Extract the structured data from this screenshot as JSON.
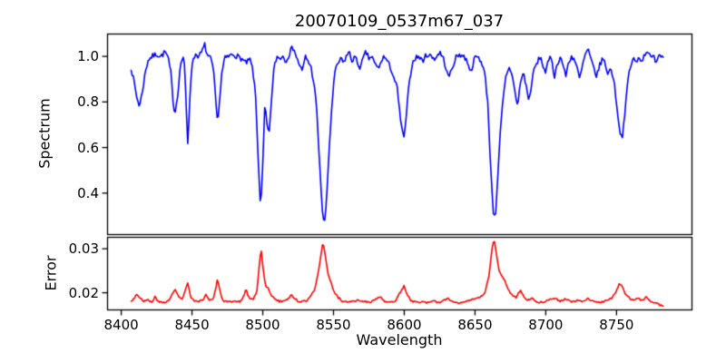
{
  "figure": {
    "title": "20070109_0537m67_037",
    "background": "#ffffff",
    "text_color": "#000000",
    "spine_color": "#000000"
  },
  "x_axis": {
    "label": "Wavelength",
    "ticks": [
      8400,
      8450,
      8500,
      8550,
      8600,
      8650,
      8700,
      8750
    ],
    "tick_labels": [
      "8400",
      "8450",
      "8500",
      "8550",
      "8600",
      "8650",
      "8700",
      "8750"
    ]
  },
  "chart_data": [
    {
      "type": "line",
      "panel": "spectrum",
      "ylabel": "Spectrum",
      "line_color": "#0000ff",
      "xlim": [
        8390,
        8803
      ],
      "ylim": [
        0.22,
        1.1
      ],
      "yticks": [
        0.4,
        0.6,
        0.8,
        1.0
      ],
      "ytick_labels": [
        "0.4",
        "0.6",
        "0.8",
        "1.0"
      ],
      "grid": false,
      "noise": {
        "amplitude": 0.012,
        "seed": 7,
        "step": 0.8
      },
      "absorption_lines": [
        8413,
        8438,
        8447,
        8468,
        8498.5,
        8543.5,
        8600,
        8664.5,
        8754
      ],
      "points": [
        [
          8407,
          0.95
        ],
        [
          8409,
          0.89
        ],
        [
          8411,
          0.82
        ],
        [
          8413,
          0.78
        ],
        [
          8415,
          0.85
        ],
        [
          8417,
          0.93
        ],
        [
          8419,
          0.985
        ],
        [
          8422,
          1.0
        ],
        [
          8425,
          1.01
        ],
        [
          8428,
          1.0
        ],
        [
          8431,
          1.02
        ],
        [
          8433,
          0.995
        ],
        [
          8435,
          0.93
        ],
        [
          8437,
          0.78
        ],
        [
          8438,
          0.75
        ],
        [
          8440,
          0.84
        ],
        [
          8442,
          0.97
        ],
        [
          8444,
          1.0
        ],
        [
          8445,
          0.93
        ],
        [
          8446,
          0.76
        ],
        [
          8447,
          0.62
        ],
        [
          8448,
          0.74
        ],
        [
          8449,
          0.9
        ],
        [
          8451,
          0.995
        ],
        [
          8453,
          1.01
        ],
        [
          8455,
          1.0
        ],
        [
          8457,
          1.02
        ],
        [
          8459,
          1.05
        ],
        [
          8461,
          1.0
        ],
        [
          8463,
          0.99
        ],
        [
          8465,
          0.95
        ],
        [
          8467,
          0.79
        ],
        [
          8468,
          0.71
        ],
        [
          8469,
          0.77
        ],
        [
          8471,
          0.92
        ],
        [
          8473,
          0.99
        ],
        [
          8476,
          1.0
        ],
        [
          8479,
          1.01
        ],
        [
          8482,
          1.0
        ],
        [
          8485,
          0.99
        ],
        [
          8488,
          0.97
        ],
        [
          8491,
          0.985
        ],
        [
          8493,
          0.94
        ],
        [
          8495,
          0.82
        ],
        [
          8497,
          0.52
        ],
        [
          8498.5,
          0.33
        ],
        [
          8500,
          0.52
        ],
        [
          8501.5,
          0.79
        ],
        [
          8503,
          0.7
        ],
        [
          8504.5,
          0.655
        ],
        [
          8506,
          0.8
        ],
        [
          8508,
          0.95
        ],
        [
          8510,
          1.0
        ],
        [
          8512,
          0.99
        ],
        [
          8514,
          1.005
        ],
        [
          8516,
          0.98
        ],
        [
          8518,
          1.0
        ],
        [
          8520,
          1.03
        ],
        [
          8522,
          1.04
        ],
        [
          8524,
          0.99
        ],
        [
          8526,
          0.965
        ],
        [
          8528,
          0.93
        ],
        [
          8530,
          1.0
        ],
        [
          8532,
          0.98
        ],
        [
          8534,
          0.955
        ],
        [
          8536,
          0.89
        ],
        [
          8538,
          0.78
        ],
        [
          8540,
          0.55
        ],
        [
          8542,
          0.33
        ],
        [
          8543.5,
          0.26
        ],
        [
          8545,
          0.36
        ],
        [
          8547,
          0.6
        ],
        [
          8549,
          0.8
        ],
        [
          8551,
          0.93
        ],
        [
          8553,
          0.965
        ],
        [
          8555,
          0.99
        ],
        [
          8557,
          0.97
        ],
        [
          8559,
          1.0
        ],
        [
          8561,
          1.02
        ],
        [
          8563,
          0.98
        ],
        [
          8565,
          1.0
        ],
        [
          8567,
          0.97
        ],
        [
          8569,
          0.95
        ],
        [
          8571,
          0.99
        ],
        [
          8573,
          1.02
        ],
        [
          8575,
          0.99
        ],
        [
          8577,
          1.0
        ],
        [
          8579,
          0.97
        ],
        [
          8581,
          0.95
        ],
        [
          8583,
          0.96
        ],
        [
          8585,
          1.0
        ],
        [
          8587,
          0.99
        ],
        [
          8589,
          0.965
        ],
        [
          8591,
          0.94
        ],
        [
          8593,
          0.9
        ],
        [
          8595,
          0.86
        ],
        [
          8597,
          0.74
        ],
        [
          8599,
          0.66
        ],
        [
          8600,
          0.64
        ],
        [
          8601,
          0.71
        ],
        [
          8603,
          0.85
        ],
        [
          8605,
          0.95
        ],
        [
          8607,
          0.99
        ],
        [
          8610,
          1.0
        ],
        [
          8613,
          0.98
        ],
        [
          8616,
          1.01
        ],
        [
          8619,
          1.0
        ],
        [
          8622,
          0.99
        ],
        [
          8625,
          1.02
        ],
        [
          8628,
          0.985
        ],
        [
          8631,
          0.91
        ],
        [
          8633,
          0.93
        ],
        [
          8636,
          0.99
        ],
        [
          8639,
          1.01
        ],
        [
          8642,
          1.0
        ],
        [
          8645,
          0.975
        ],
        [
          8647,
          0.93
        ],
        [
          8649,
          0.98
        ],
        [
          8651,
          1.0
        ],
        [
          8653,
          0.99
        ],
        [
          8655,
          0.97
        ],
        [
          8657,
          0.92
        ],
        [
          8659,
          0.8
        ],
        [
          8661,
          0.52
        ],
        [
          8663,
          0.31
        ],
        [
          8664.5,
          0.3
        ],
        [
          8666,
          0.46
        ],
        [
          8668,
          0.68
        ],
        [
          8670,
          0.82
        ],
        [
          8672,
          0.92
        ],
        [
          8674,
          0.95
        ],
        [
          8676,
          0.93
        ],
        [
          8678,
          0.85
        ],
        [
          8680,
          0.78
        ],
        [
          8682,
          0.88
        ],
        [
          8684,
          0.93
        ],
        [
          8686,
          0.88
        ],
        [
          8688,
          0.8
        ],
        [
          8690,
          0.88
        ],
        [
          8692,
          0.95
        ],
        [
          8694,
          0.97
        ],
        [
          8696,
          1.0
        ],
        [
          8698,
          0.96
        ],
        [
          8700,
          0.93
        ],
        [
          8702,
          0.98
        ],
        [
          8704,
          1.0
        ],
        [
          8706,
          0.91
        ],
        [
          8708,
          0.96
        ],
        [
          8710,
          1.0
        ],
        [
          8712,
          0.97
        ],
        [
          8714,
          0.91
        ],
        [
          8716,
          0.97
        ],
        [
          8718,
          1.0
        ],
        [
          8720,
          0.99
        ],
        [
          8722,
          0.95
        ],
        [
          8724,
          0.9
        ],
        [
          8726,
          0.96
        ],
        [
          8728,
          1.01
        ],
        [
          8730,
          1.03
        ],
        [
          8732,
          0.98
        ],
        [
          8734,
          0.95
        ],
        [
          8736,
          0.91
        ],
        [
          8738,
          0.96
        ],
        [
          8740,
          0.99
        ],
        [
          8742,
          0.97
        ],
        [
          8744,
          0.92
        ],
        [
          8746,
          0.95
        ],
        [
          8748,
          0.9
        ],
        [
          8750,
          0.8
        ],
        [
          8752,
          0.68
        ],
        [
          8754,
          0.64
        ],
        [
          8756,
          0.75
        ],
        [
          8758,
          0.9
        ],
        [
          8760,
          0.96
        ],
        [
          8762,
          0.99
        ],
        [
          8764,
          0.97
        ],
        [
          8766,
          1.0
        ],
        [
          8768,
          0.98
        ],
        [
          8770,
          1.01
        ],
        [
          8772,
          1.03
        ],
        [
          8774,
          0.99
        ],
        [
          8776,
          1.0
        ],
        [
          8778,
          0.98
        ],
        [
          8780,
          1.01
        ],
        [
          8783,
          1.0
        ]
      ]
    },
    {
      "type": "line",
      "panel": "error",
      "ylabel": "Error",
      "line_color": "#ff0000",
      "xlim": [
        8390,
        8803
      ],
      "ylim": [
        0.0162,
        0.0327
      ],
      "yticks": [
        0.02,
        0.03
      ],
      "ytick_labels": [
        "0.02",
        "0.03"
      ],
      "grid": false,
      "noise": {
        "amplitude": 0.00022,
        "seed": 3,
        "step": 0.8
      },
      "points": [
        [
          8407,
          0.018
        ],
        [
          8409,
          0.0188
        ],
        [
          8411,
          0.0196
        ],
        [
          8413,
          0.019
        ],
        [
          8416,
          0.0181
        ],
        [
          8419,
          0.0183
        ],
        [
          8422,
          0.0178
        ],
        [
          8424,
          0.0192
        ],
        [
          8426,
          0.018
        ],
        [
          8429,
          0.0177
        ],
        [
          8432,
          0.0179
        ],
        [
          8435,
          0.019
        ],
        [
          8438,
          0.0207
        ],
        [
          8440,
          0.0195
        ],
        [
          8443,
          0.0184
        ],
        [
          8446,
          0.0213
        ],
        [
          8447,
          0.0222
        ],
        [
          8449,
          0.019
        ],
        [
          8452,
          0.018
        ],
        [
          8455,
          0.0179
        ],
        [
          8458,
          0.0186
        ],
        [
          8460,
          0.0196
        ],
        [
          8462,
          0.0184
        ],
        [
          8465,
          0.0185
        ],
        [
          8467,
          0.0213
        ],
        [
          8468,
          0.0232
        ],
        [
          8470,
          0.02
        ],
        [
          8472,
          0.0182
        ],
        [
          8475,
          0.0179
        ],
        [
          8478,
          0.0178
        ],
        [
          8481,
          0.018
        ],
        [
          8484,
          0.0179
        ],
        [
          8487,
          0.0195
        ],
        [
          8488,
          0.021
        ],
        [
          8490,
          0.019
        ],
        [
          8493,
          0.0184
        ],
        [
          8496,
          0.0205
        ],
        [
          8498,
          0.028
        ],
        [
          8499,
          0.0295
        ],
        [
          8500,
          0.0262
        ],
        [
          8502,
          0.0213
        ],
        [
          8504,
          0.021
        ],
        [
          8506,
          0.0195
        ],
        [
          8509,
          0.0184
        ],
        [
          8512,
          0.018
        ],
        [
          8515,
          0.0182
        ],
        [
          8518,
          0.0186
        ],
        [
          8520,
          0.0196
        ],
        [
          8522,
          0.0188
        ],
        [
          8525,
          0.0181
        ],
        [
          8528,
          0.018
        ],
        [
          8531,
          0.0182
        ],
        [
          8534,
          0.0195
        ],
        [
          8537,
          0.021
        ],
        [
          8540,
          0.026
        ],
        [
          8542.5,
          0.0316
        ],
        [
          8544,
          0.029
        ],
        [
          8546,
          0.0245
        ],
        [
          8548,
          0.0225
        ],
        [
          8550,
          0.0205
        ],
        [
          8553,
          0.019
        ],
        [
          8556,
          0.0182
        ],
        [
          8560,
          0.0178
        ],
        [
          8564,
          0.018
        ],
        [
          8568,
          0.0183
        ],
        [
          8572,
          0.018
        ],
        [
          8576,
          0.0178
        ],
        [
          8580,
          0.0185
        ],
        [
          8583,
          0.0191
        ],
        [
          8586,
          0.018
        ],
        [
          8590,
          0.0177
        ],
        [
          8594,
          0.0183
        ],
        [
          8598,
          0.0205
        ],
        [
          8600,
          0.0216
        ],
        [
          8602,
          0.0195
        ],
        [
          8605,
          0.0181
        ],
        [
          8609,
          0.0178
        ],
        [
          8613,
          0.018
        ],
        [
          8617,
          0.0177
        ],
        [
          8621,
          0.018
        ],
        [
          8625,
          0.0178
        ],
        [
          8629,
          0.0184
        ],
        [
          8631,
          0.0188
        ],
        [
          8634,
          0.018
        ],
        [
          8638,
          0.0177
        ],
        [
          8642,
          0.018
        ],
        [
          8646,
          0.0182
        ],
        [
          8650,
          0.0185
        ],
        [
          8654,
          0.019
        ],
        [
          8657,
          0.02
        ],
        [
          8660,
          0.024
        ],
        [
          8662,
          0.03
        ],
        [
          8663.5,
          0.0323
        ],
        [
          8665,
          0.029
        ],
        [
          8667,
          0.025
        ],
        [
          8669,
          0.0238
        ],
        [
          8671,
          0.0228
        ],
        [
          8673,
          0.021
        ],
        [
          8676,
          0.0195
        ],
        [
          8679,
          0.019
        ],
        [
          8682,
          0.0205
        ],
        [
          8684,
          0.0195
        ],
        [
          8687,
          0.0183
        ],
        [
          8690,
          0.0188
        ],
        [
          8693,
          0.0181
        ],
        [
          8696,
          0.0178
        ],
        [
          8700,
          0.0181
        ],
        [
          8703,
          0.0186
        ],
        [
          8706,
          0.0189
        ],
        [
          8710,
          0.0181
        ],
        [
          8714,
          0.0186
        ],
        [
          8718,
          0.0179
        ],
        [
          8722,
          0.0182
        ],
        [
          8726,
          0.018
        ],
        [
          8730,
          0.0187
        ],
        [
          8734,
          0.018
        ],
        [
          8738,
          0.0178
        ],
        [
          8742,
          0.0181
        ],
        [
          8746,
          0.0186
        ],
        [
          8750,
          0.0205
        ],
        [
          8752,
          0.0222
        ],
        [
          8754,
          0.0215
        ],
        [
          8756,
          0.0198
        ],
        [
          8759,
          0.0188
        ],
        [
          8762,
          0.0183
        ],
        [
          8765,
          0.0188
        ],
        [
          8768,
          0.0182
        ],
        [
          8771,
          0.0189
        ],
        [
          8774,
          0.0181
        ],
        [
          8777,
          0.0178
        ],
        [
          8780,
          0.0173
        ],
        [
          8783,
          0.017
        ]
      ]
    }
  ]
}
